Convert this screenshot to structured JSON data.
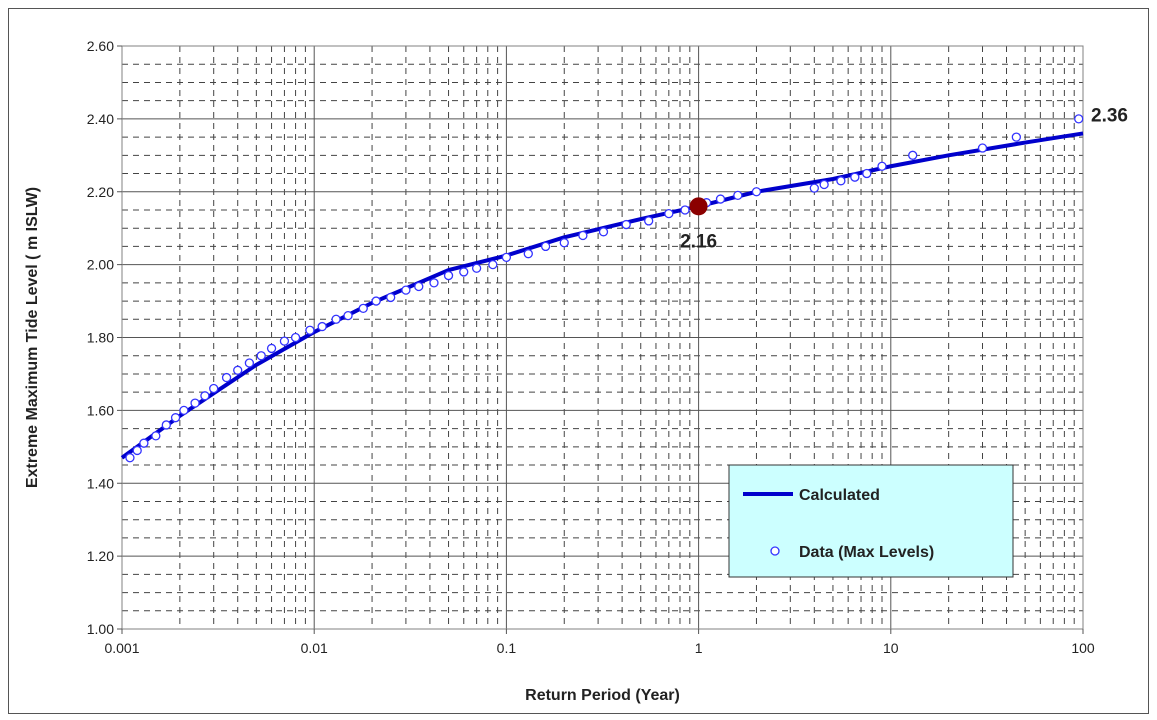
{
  "chart_data": {
    "type": "line",
    "xscale": "log",
    "xlim": [
      0.001,
      100
    ],
    "ylim": [
      1.0,
      2.6
    ],
    "x_ticks": [
      "0.001",
      "0.01",
      "0.1",
      "1",
      "10",
      "100"
    ],
    "y_ticks": [
      "1.00",
      "1.20",
      "1.40",
      "1.60",
      "1.80",
      "2.00",
      "2.20",
      "2.40",
      "2.60"
    ],
    "xlabel": "Return Period (Year)",
    "ylabel": "Extreme Maximum Tide Level ( m ISLW)",
    "grid": true,
    "legend_position": "bottom-right",
    "colors": {
      "calculated": "#0000cc",
      "data_marker": "#3333ff",
      "highlight": "#8b0000",
      "legend_bg": "#ccffff"
    },
    "series": [
      {
        "name": "Calculated",
        "kind": "line",
        "x": [
          0.001,
          0.002,
          0.005,
          0.01,
          0.02,
          0.05,
          0.1,
          0.2,
          0.5,
          1,
          2,
          5,
          10,
          20,
          50,
          100
        ],
        "y": [
          1.47,
          1.585,
          1.725,
          1.815,
          1.895,
          1.985,
          2.025,
          2.075,
          2.125,
          2.16,
          2.2,
          2.235,
          2.27,
          2.3,
          2.335,
          2.36
        ]
      },
      {
        "name": "Data (Max Levels)",
        "kind": "scatter",
        "x": [
          0.0011,
          0.0012,
          0.0013,
          0.0015,
          0.0017,
          0.0019,
          0.0021,
          0.0024,
          0.0027,
          0.003,
          0.0035,
          0.004,
          0.0046,
          0.0053,
          0.006,
          0.007,
          0.008,
          0.0095,
          0.011,
          0.013,
          0.015,
          0.018,
          0.021,
          0.025,
          0.03,
          0.035,
          0.042,
          0.05,
          0.06,
          0.07,
          0.085,
          0.1,
          0.13,
          0.16,
          0.2,
          0.25,
          0.32,
          0.42,
          0.55,
          0.7,
          0.85,
          1.1,
          1.3,
          1.6,
          2.0,
          4.0,
          4.5,
          5.5,
          6.5,
          7.5,
          9.0,
          13,
          30,
          45,
          95
        ],
        "y": [
          1.47,
          1.49,
          1.51,
          1.53,
          1.56,
          1.58,
          1.6,
          1.62,
          1.64,
          1.66,
          1.69,
          1.71,
          1.73,
          1.75,
          1.77,
          1.79,
          1.8,
          1.82,
          1.83,
          1.85,
          1.86,
          1.88,
          1.9,
          1.91,
          1.93,
          1.94,
          1.95,
          1.97,
          1.98,
          1.99,
          2.0,
          2.02,
          2.03,
          2.05,
          2.06,
          2.08,
          2.09,
          2.11,
          2.12,
          2.14,
          2.15,
          2.17,
          2.18,
          2.19,
          2.2,
          2.21,
          2.22,
          2.23,
          2.24,
          2.25,
          2.27,
          2.3,
          2.32,
          2.35,
          2.4
        ]
      }
    ],
    "highlight_point": {
      "x": 1,
      "y": 2.16,
      "label": "2.16"
    },
    "end_label": {
      "x": 100,
      "y": 2.36,
      "label": "2.36"
    }
  }
}
